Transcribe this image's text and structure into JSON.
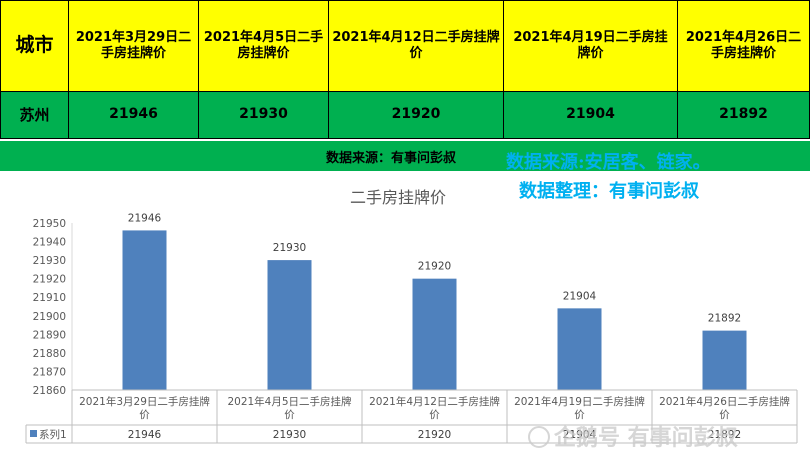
{
  "table": {
    "city_header": "城市",
    "headers": [
      "2021年3月29日二手房挂牌价",
      "2021年4月5日二手房挂牌价",
      "2021年4月12日二手房挂牌价",
      "2021年4月19日二手房挂牌价",
      "2021年4月26日二手房挂牌价"
    ],
    "city": "苏州",
    "values": [
      "21946",
      "21930",
      "21920",
      "21904",
      "21892"
    ]
  },
  "source_bar": {
    "text": "数据来源：有事问彭叔"
  },
  "overlay": {
    "line1": "数据来源:安居客、链家。",
    "line2": "数据整理：有事问彭叔"
  },
  "watermark": "企鹅号 有事问彭叔",
  "chart_data": {
    "type": "bar",
    "title": "二手房挂牌价",
    "categories": [
      "2021年3月29日二手房挂牌价",
      "2021年4月5日二手房挂牌价",
      "2021年4月12日二手房挂牌价",
      "2021年4月19日二手房挂牌价",
      "2021年4月26日二手房挂牌价"
    ],
    "series": [
      {
        "name": "系列1",
        "values": [
          21946,
          21930,
          21920,
          21904,
          21892
        ],
        "color": "#4f81bd"
      }
    ],
    "ylim": [
      21860,
      21950
    ],
    "yticks": [
      21860,
      21870,
      21880,
      21890,
      21900,
      21910,
      21920,
      21930,
      21940,
      21950
    ],
    "grid": false,
    "data_table": true,
    "xlabel": "",
    "ylabel": ""
  }
}
